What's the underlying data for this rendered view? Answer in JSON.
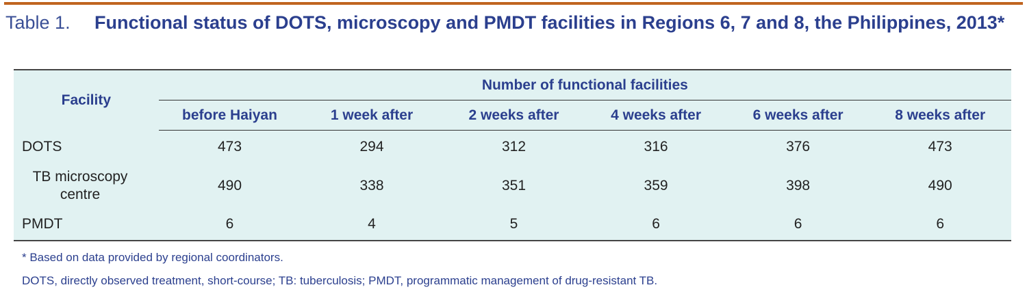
{
  "caption": {
    "label": "Table 1.",
    "title": "Functional status of DOTS, microscopy and PMDT facilities in Regions 6, 7 and 8, the Philippines, 2013*"
  },
  "table": {
    "facility_header": "Facility",
    "group_header": "Number of functional facilities",
    "columns": [
      "before Haiyan",
      "1 week after",
      "2 weeks after",
      "4 weeks after",
      "6 weeks after",
      "8 weeks after"
    ],
    "rows": [
      {
        "name": "DOTS",
        "values": [
          "473",
          "294",
          "312",
          "316",
          "376",
          "473"
        ]
      },
      {
        "name": "TB microscopy centre",
        "values": [
          "490",
          "338",
          "351",
          "359",
          "398",
          "490"
        ]
      },
      {
        "name": "PMDT",
        "values": [
          "6",
          "4",
          "5",
          "6",
          "6",
          "6"
        ]
      }
    ]
  },
  "notes": [
    "* Based on data provided by regional coordinators.",
    "DOTS, directly observed treatment, short-course; TB: tuberculosis; PMDT, programmatic management of drug-resistant TB."
  ]
}
